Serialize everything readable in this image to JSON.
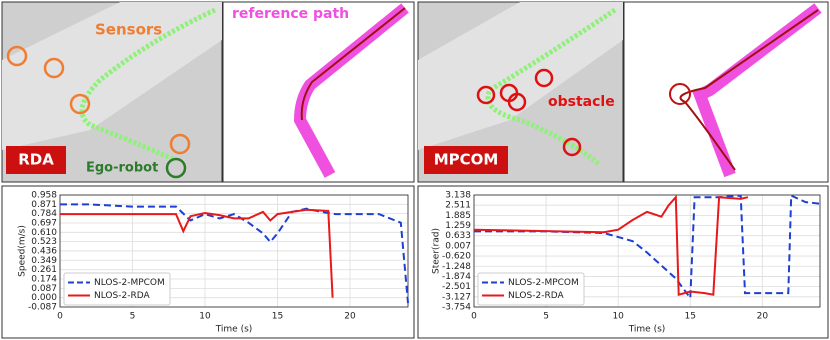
{
  "scenes": [
    {
      "sensors": "Sensors",
      "robot": "Ego-robot",
      "method": "RDA",
      "path": "reference path"
    },
    {
      "method": "MPCOM",
      "obstacle": "obstacle"
    }
  ],
  "chart_data": [
    {
      "type": "line",
      "xlabel": "Time (s)",
      "ylabel": "Speed(m/s)",
      "xlim": [
        0,
        24
      ],
      "xticks": [
        0,
        5,
        10,
        15,
        20
      ],
      "ylim": [
        -0.087,
        0.958
      ],
      "yticks": [
        0.958,
        0.871,
        0.784,
        0.697,
        {
          "value": 0.61,
          "label": "0.610"
        },
        0.523,
        0.436,
        0.349,
        0.261,
        0.174,
        0.087,
        {
          "value": 0,
          "label": "0.000"
        },
        -0.087
      ],
      "grid": true,
      "legend": "lower left",
      "series": [
        {
          "name": "NLOS-2-MPCOM",
          "color": "#1f3fd1",
          "dashed": true,
          "x": [
            0,
            2,
            5,
            8,
            9,
            10,
            11,
            12,
            13,
            14,
            14.5,
            15,
            16,
            17,
            18,
            19,
            20,
            22,
            23.5,
            24
          ],
          "values": [
            0.87,
            0.87,
            0.85,
            0.85,
            0.72,
            0.78,
            0.74,
            0.78,
            0.7,
            0.6,
            0.52,
            0.6,
            0.8,
            0.83,
            0.8,
            0.78,
            0.78,
            0.78,
            0.7,
            -0.05
          ]
        },
        {
          "name": "NLOS-2-RDA",
          "color": "#e8191b",
          "dashed": false,
          "x": [
            0,
            5,
            8,
            8.5,
            9,
            10,
            11,
            12,
            13,
            14,
            14.5,
            15,
            16,
            17,
            18.5,
            18.8
          ],
          "values": [
            0.78,
            0.78,
            0.78,
            0.62,
            0.76,
            0.79,
            0.77,
            0.74,
            0.74,
            0.8,
            0.72,
            0.78,
            0.8,
            0.82,
            0.81,
            0
          ]
        }
      ]
    },
    {
      "type": "line",
      "xlabel": "Time (s)",
      "ylabel": "Steer(rad)",
      "xlim": [
        0,
        24
      ],
      "xticks": [
        0,
        5,
        10,
        15,
        20
      ],
      "ylim": [
        -3.754,
        3.138
      ],
      "yticks": [
        3.138,
        2.511,
        1.885,
        1.259,
        0.633,
        0.007,
        {
          "value": -0.62,
          "label": "-0.620"
        },
        -1.248,
        -1.874,
        -2.501,
        -3.127,
        -3.754
      ],
      "grid": true,
      "legend": "lower left",
      "series": [
        {
          "name": "NLOS-2-MPCOM",
          "color": "#1f3fd1",
          "dashed": true,
          "x": [
            0,
            5,
            9,
            11,
            12,
            13,
            14,
            15,
            15.3,
            17,
            18.5,
            18.8,
            21.8,
            22,
            23,
            24
          ],
          "values": [
            0.9,
            0.9,
            0.8,
            0.3,
            -0.4,
            -1.2,
            -2.0,
            -3.2,
            3.0,
            3.0,
            3.1,
            -2.9,
            -2.9,
            3.1,
            2.7,
            2.6
          ]
        },
        {
          "name": "NLOS-2-RDA",
          "color": "#e8191b",
          "dashed": false,
          "x": [
            0,
            9,
            10,
            11,
            12,
            13,
            13.5,
            14,
            14.2,
            15,
            16,
            16.6,
            17,
            18.5,
            19
          ],
          "values": [
            1.0,
            0.85,
            1.0,
            1.6,
            2.1,
            1.8,
            2.5,
            3.0,
            -3.0,
            -2.8,
            -2.9,
            -3.0,
            3.0,
            2.9,
            3.0
          ]
        }
      ]
    }
  ]
}
